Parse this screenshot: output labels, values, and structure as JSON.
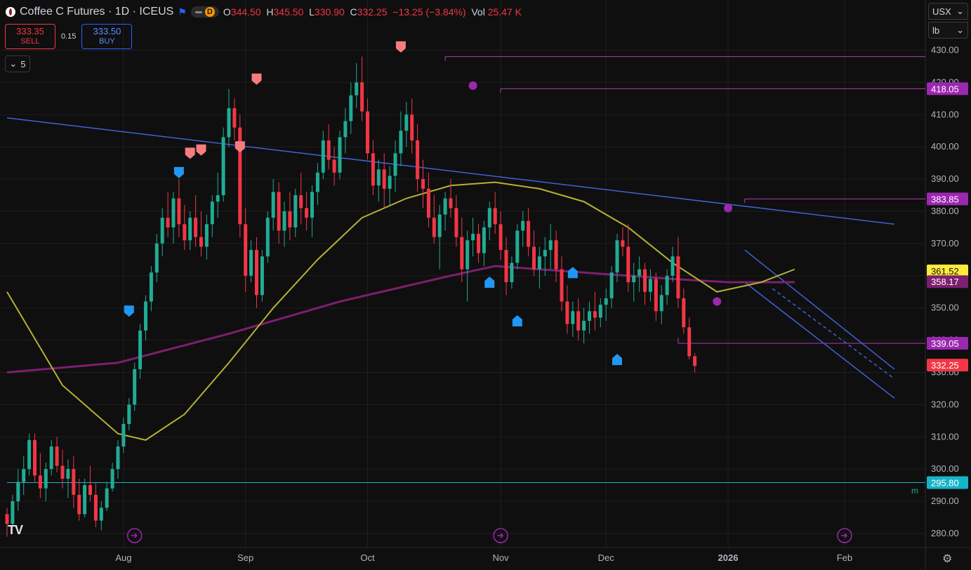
{
  "header": {
    "title": "Coffee C Futures · 1D · ICEUS",
    "interval_badge": "D",
    "open_label": "O",
    "open": "344.50",
    "high_label": "H",
    "high": "345.50",
    "low_label": "L",
    "low": "330.90",
    "close_label": "C",
    "close": "332.25",
    "change": "−13.25 (−3.84%)",
    "vol_label": "Vol",
    "vol": "25.47 K"
  },
  "trade": {
    "sell_price": "333.35",
    "sell_label": "SELL",
    "spread": "0.15",
    "buy_price": "333.50",
    "buy_label": "BUY"
  },
  "indicators_toggle": "5",
  "currency_select": "USX",
  "unit_select": "lb",
  "logo_text": "TV",
  "m_label": "m",
  "colors": {
    "background": "#0f0f0f",
    "up": "#22ab94",
    "down": "#f23645",
    "ma_short": "#b5b134",
    "ma_long": "#7d1f6f",
    "trendline": "#3f62d6",
    "magenta_line": "#b43ab4",
    "support_line": "#16b4c7"
  },
  "chart_data": {
    "type": "candlestick",
    "symbol": "Coffee C Futures",
    "timeframe": "1D",
    "y_ticks": [
      "280.00",
      "290.00",
      "300.00",
      "310.00",
      "320.00",
      "330.00",
      "340.00",
      "350.00",
      "360.00",
      "370.00",
      "380.00",
      "390.00",
      "400.00",
      "410.00",
      "420.00",
      "430.00"
    ],
    "ylim": [
      276,
      438
    ],
    "x_labels": [
      "Aug",
      "Sep",
      "Oct",
      "Nov",
      "Dec",
      "2026",
      "Feb"
    ],
    "x_labels_day_index": [
      21,
      43,
      65,
      89,
      108,
      130,
      151
    ],
    "price_labels": [
      {
        "text": "418.05",
        "color": "#9c27b0"
      },
      {
        "text": "383.85",
        "color": "#9c27b0"
      },
      {
        "text": "361.52",
        "color": "#ffeb3b"
      },
      {
        "text": "358.17",
        "color": "#7d1f6f"
      },
      {
        "text": "339.05",
        "color": "#9c27b0"
      },
      {
        "text": "332.25",
        "color": "#f23645"
      },
      {
        "text": "295.80",
        "color": "#16b4c7"
      }
    ],
    "levels": [
      {
        "value": 428.0,
        "start_day": 79
      },
      {
        "value": 418.05,
        "start_day": 89
      },
      {
        "value": 383.85,
        "start_day": 133
      },
      {
        "value": 339.05,
        "start_day": 121
      },
      {
        "value": 295.8,
        "start_day": 0
      }
    ],
    "candles": [
      [
        286,
        288,
        279,
        283
      ],
      [
        283,
        292,
        282,
        290
      ],
      [
        290,
        300,
        287,
        296
      ],
      [
        296,
        304,
        292,
        300
      ],
      [
        300,
        311,
        298,
        309
      ],
      [
        309,
        311,
        296,
        298
      ],
      [
        298,
        305,
        291,
        294
      ],
      [
        294,
        302,
        290,
        300
      ],
      [
        300,
        309,
        298,
        307
      ],
      [
        307,
        310,
        299,
        301
      ],
      [
        301,
        306,
        294,
        297
      ],
      [
        297,
        303,
        291,
        300
      ],
      [
        300,
        304,
        288,
        292
      ],
      [
        292,
        297,
        284,
        286
      ],
      [
        286,
        297,
        285,
        295
      ],
      [
        295,
        301,
        290,
        292
      ],
      [
        292,
        296,
        282,
        284
      ],
      [
        284,
        290,
        281,
        288
      ],
      [
        288,
        296,
        287,
        294
      ],
      [
        294,
        302,
        293,
        300
      ],
      [
        300,
        309,
        297,
        307
      ],
      [
        307,
        316,
        305,
        314
      ],
      [
        314,
        322,
        312,
        320
      ],
      [
        320,
        333,
        318,
        331
      ],
      [
        331,
        345,
        328,
        343
      ],
      [
        343,
        354,
        340,
        352
      ],
      [
        352,
        363,
        349,
        361
      ],
      [
        361,
        373,
        358,
        370
      ],
      [
        370,
        381,
        366,
        378
      ],
      [
        378,
        386,
        372,
        375
      ],
      [
        375,
        386,
        370,
        384
      ],
      [
        384,
        390,
        372,
        376
      ],
      [
        376,
        382,
        368,
        371
      ],
      [
        371,
        380,
        368,
        378
      ],
      [
        378,
        385,
        369,
        372
      ],
      [
        372,
        380,
        366,
        369
      ],
      [
        369,
        379,
        365,
        376
      ],
      [
        376,
        385,
        372,
        383
      ],
      [
        383,
        392,
        378,
        385
      ],
      [
        385,
        406,
        383,
        403
      ],
      [
        403,
        418,
        400,
        412
      ],
      [
        412,
        415,
        402,
        406
      ],
      [
        406,
        410,
        372,
        376
      ],
      [
        376,
        381,
        355,
        360
      ],
      [
        360,
        371,
        358,
        368
      ],
      [
        368,
        372,
        350,
        354
      ],
      [
        354,
        368,
        352,
        366
      ],
      [
        366,
        380,
        364,
        378
      ],
      [
        378,
        390,
        374,
        386
      ],
      [
        386,
        389,
        370,
        374
      ],
      [
        374,
        383,
        369,
        380
      ],
      [
        380,
        386,
        371,
        375
      ],
      [
        375,
        387,
        372,
        385
      ],
      [
        385,
        392,
        376,
        381
      ],
      [
        381,
        386,
        374,
        378
      ],
      [
        378,
        388,
        372,
        386
      ],
      [
        386,
        395,
        382,
        392
      ],
      [
        392,
        405,
        390,
        402
      ],
      [
        402,
        407,
        393,
        396
      ],
      [
        396,
        400,
        388,
        392
      ],
      [
        392,
        405,
        390,
        403
      ],
      [
        403,
        412,
        398,
        408
      ],
      [
        408,
        420,
        404,
        416
      ],
      [
        416,
        426,
        412,
        420
      ],
      [
        420,
        428,
        408,
        411
      ],
      [
        411,
        415,
        396,
        398
      ],
      [
        398,
        402,
        385,
        388
      ],
      [
        388,
        396,
        383,
        393
      ],
      [
        393,
        398,
        381,
        387
      ],
      [
        387,
        394,
        382,
        391
      ],
      [
        391,
        402,
        386,
        398
      ],
      [
        398,
        411,
        394,
        405
      ],
      [
        405,
        414,
        400,
        410
      ],
      [
        410,
        415,
        398,
        402
      ],
      [
        402,
        407,
        386,
        390
      ],
      [
        390,
        396,
        381,
        387
      ],
      [
        387,
        392,
        375,
        378
      ],
      [
        378,
        385,
        370,
        372
      ],
      [
        372,
        382,
        362,
        379
      ],
      [
        379,
        386,
        374,
        384
      ],
      [
        384,
        390,
        378,
        381
      ],
      [
        381,
        385,
        369,
        372
      ],
      [
        372,
        378,
        358,
        362
      ],
      [
        362,
        374,
        352,
        371
      ],
      [
        371,
        378,
        366,
        373
      ],
      [
        373,
        376,
        364,
        367
      ],
      [
        367,
        377,
        363,
        375
      ],
      [
        375,
        383,
        371,
        381
      ],
      [
        381,
        386,
        373,
        376
      ],
      [
        376,
        380,
        365,
        368
      ],
      [
        368,
        372,
        354,
        358
      ],
      [
        358,
        366,
        356,
        364
      ],
      [
        364,
        376,
        362,
        374
      ],
      [
        374,
        380,
        369,
        377
      ],
      [
        377,
        381,
        366,
        369
      ],
      [
        369,
        374,
        360,
        362
      ],
      [
        362,
        369,
        356,
        366
      ],
      [
        366,
        372,
        360,
        368
      ],
      [
        368,
        376,
        362,
        371
      ],
      [
        371,
        374,
        358,
        362
      ],
      [
        362,
        366,
        349,
        352
      ],
      [
        352,
        357,
        342,
        345
      ],
      [
        345,
        352,
        341,
        349
      ],
      [
        349,
        353,
        340,
        343
      ],
      [
        343,
        350,
        339,
        346
      ],
      [
        346,
        352,
        342,
        349
      ],
      [
        349,
        355,
        343,
        347
      ],
      [
        347,
        353,
        344,
        351
      ],
      [
        351,
        356,
        346,
        353
      ],
      [
        353,
        363,
        350,
        361
      ],
      [
        361,
        373,
        358,
        371
      ],
      [
        371,
        375,
        366,
        369
      ],
      [
        369,
        376,
        355,
        358
      ],
      [
        358,
        364,
        352,
        360
      ],
      [
        360,
        366,
        355,
        362
      ],
      [
        362,
        364,
        351,
        355
      ],
      [
        355,
        362,
        352,
        359
      ],
      [
        359,
        361,
        346,
        349
      ],
      [
        349,
        357,
        345,
        354
      ],
      [
        354,
        362,
        351,
        360
      ],
      [
        360,
        369,
        358,
        366
      ],
      [
        366,
        372,
        350,
        353
      ],
      [
        353,
        356,
        342,
        344
      ],
      [
        344,
        347,
        334,
        335
      ],
      [
        335,
        336,
        330,
        332
      ]
    ],
    "start_day": 0,
    "ma_short": [
      [
        0,
        355
      ],
      [
        10,
        326
      ],
      [
        20,
        311
      ],
      [
        25,
        309
      ],
      [
        32,
        317
      ],
      [
        40,
        333
      ],
      [
        48,
        350
      ],
      [
        56,
        365
      ],
      [
        64,
        378
      ],
      [
        72,
        384
      ],
      [
        80,
        388
      ],
      [
        88,
        389
      ],
      [
        96,
        387
      ],
      [
        104,
        383
      ],
      [
        112,
        375
      ],
      [
        120,
        364
      ],
      [
        128,
        355
      ],
      [
        136,
        358
      ],
      [
        142,
        362
      ]
    ],
    "ma_long": [
      [
        0,
        330
      ],
      [
        20,
        333
      ],
      [
        40,
        342
      ],
      [
        60,
        352
      ],
      [
        80,
        360
      ],
      [
        88,
        363
      ],
      [
        96,
        362
      ],
      [
        104,
        361
      ],
      [
        112,
        360
      ],
      [
        120,
        359
      ],
      [
        130,
        358
      ],
      [
        142,
        358
      ]
    ],
    "trendlines": [
      {
        "from": [
          0,
          409
        ],
        "to": [
          160,
          376
        ]
      },
      {
        "from": [
          133,
          368
        ],
        "to": [
          160,
          331
        ]
      },
      {
        "from": [
          133,
          358
        ],
        "to": [
          160,
          322
        ]
      },
      {
        "from": [
          138,
          356
        ],
        "to": [
          160,
          328
        ],
        "dashed": true
      }
    ],
    "markers": [
      {
        "day": 22,
        "value": 349,
        "kind": "blue-down"
      },
      {
        "day": 31,
        "value": 392,
        "kind": "blue-down"
      },
      {
        "day": 33,
        "value": 398,
        "kind": "red-down"
      },
      {
        "day": 35,
        "value": 399,
        "kind": "red-down"
      },
      {
        "day": 42,
        "value": 400,
        "kind": "red-down"
      },
      {
        "day": 45,
        "value": 421,
        "kind": "red-down"
      },
      {
        "day": 71,
        "value": 431,
        "kind": "red-down"
      },
      {
        "day": 87,
        "value": 358,
        "kind": "blue-up"
      },
      {
        "day": 92,
        "value": 346,
        "kind": "blue-up"
      },
      {
        "day": 102,
        "value": 361,
        "kind": "blue-up"
      },
      {
        "day": 110,
        "value": 334,
        "kind": "blue-up"
      }
    ]
  }
}
